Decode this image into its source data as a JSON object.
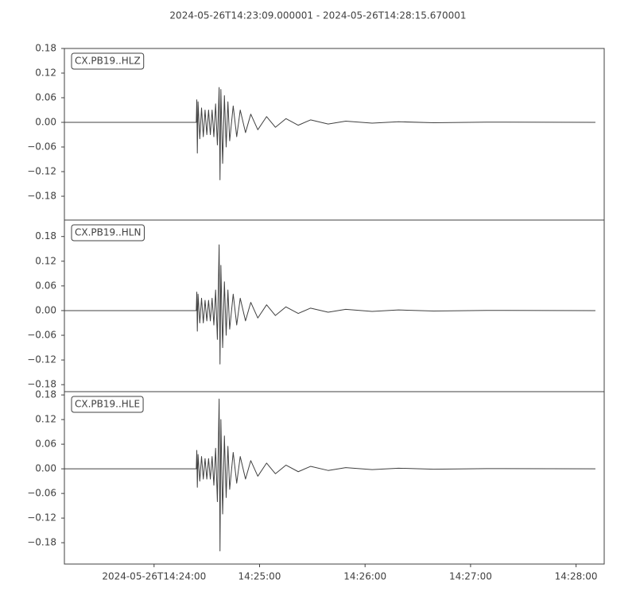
{
  "title": "2024-05-26T14:23:09.000001  -  2024-05-26T14:28:15.670001",
  "chart_data": [
    {
      "type": "line",
      "label": "CX.PB19..HLZ",
      "color": "#404040",
      "xlim": [
        0,
        307
      ],
      "ylim": [
        -0.238,
        0.18
      ],
      "yticks": [
        0.18,
        0.12,
        0.06,
        {
          "value": 0,
          "label": "0.00"
        },
        {
          "value": -0.06,
          "label": "−0.06"
        },
        {
          "value": -0.12,
          "label": "−0.12"
        },
        {
          "value": -0.18,
          "label": "−0.18"
        }
      ],
      "x": [
        0,
        75,
        75.3,
        75.6,
        76,
        77,
        78,
        79,
        80,
        81,
        82,
        83,
        84,
        85,
        86,
        87,
        88,
        88.5,
        89,
        90,
        91,
        92,
        93,
        94,
        96,
        98,
        100,
        103,
        106,
        110,
        115,
        120,
        126,
        133,
        140,
        150,
        160,
        175,
        190,
        210,
        240,
        302
      ],
      "values": [
        0,
        0,
        0.055,
        -0.075,
        0.05,
        -0.04,
        0.035,
        -0.035,
        0.03,
        -0.03,
        0.03,
        -0.03,
        0.03,
        -0.035,
        0.045,
        -0.055,
        0.085,
        -0.14,
        0.08,
        -0.1,
        0.065,
        -0.06,
        0.05,
        -0.045,
        0.04,
        -0.035,
        0.03,
        -0.025,
        0.02,
        -0.018,
        0.014,
        -0.012,
        0.009,
        -0.007,
        0.006,
        -0.004,
        0.003,
        -0.002,
        0.0015,
        -0.001,
        0.0005,
        0
      ]
    },
    {
      "type": "line",
      "label": "CX.PB19..HLN",
      "color": "#404040",
      "xlim": [
        0,
        307
      ],
      "ylim": [
        -0.197,
        0.22
      ],
      "yticks": [
        0.18,
        0.12,
        0.06,
        {
          "value": 0,
          "label": "0.00"
        },
        {
          "value": -0.06,
          "label": "−0.06"
        },
        {
          "value": -0.12,
          "label": "−0.12"
        },
        {
          "value": -0.18,
          "label": "−0.18"
        }
      ],
      "x": [
        0,
        75,
        75.3,
        75.6,
        76,
        77,
        78,
        79,
        80,
        81,
        82,
        83,
        84,
        85,
        86,
        87,
        88,
        88.5,
        89,
        90,
        91,
        92,
        93,
        94,
        96,
        98,
        100,
        103,
        106,
        110,
        115,
        120,
        126,
        133,
        140,
        150,
        160,
        175,
        190,
        210,
        240,
        302
      ],
      "values": [
        0,
        0,
        0.045,
        -0.05,
        0.04,
        -0.03,
        0.03,
        -0.03,
        0.025,
        -0.025,
        0.025,
        -0.025,
        0.03,
        -0.035,
        0.05,
        -0.07,
        0.16,
        -0.13,
        0.11,
        -0.09,
        0.07,
        -0.06,
        0.05,
        -0.045,
        0.04,
        -0.035,
        0.03,
        -0.025,
        0.02,
        -0.018,
        0.014,
        -0.012,
        0.009,
        -0.007,
        0.006,
        -0.004,
        0.003,
        -0.002,
        0.0015,
        -0.001,
        0.0005,
        0
      ]
    },
    {
      "type": "line",
      "label": "CX.PB19..HLE",
      "color": "#404040",
      "xlim": [
        0,
        307
      ],
      "ylim": [
        -0.232,
        0.188
      ],
      "yticks": [
        0.18,
        0.12,
        0.06,
        {
          "value": 0,
          "label": "0.00"
        },
        {
          "value": -0.06,
          "label": "−0.06"
        },
        {
          "value": -0.12,
          "label": "−0.12"
        },
        {
          "value": -0.18,
          "label": "−0.18"
        }
      ],
      "xticks": [
        {
          "value": 51,
          "label": "2024-05-26T14:24:00"
        },
        {
          "value": 111,
          "label": "14:25:00"
        },
        {
          "value": 171,
          "label": "14:26:00"
        },
        {
          "value": 231,
          "label": "14:27:00"
        },
        {
          "value": 291,
          "label": "14:28:00"
        }
      ],
      "x": [
        0,
        75,
        75.3,
        75.6,
        76,
        77,
        78,
        79,
        80,
        81,
        82,
        83,
        84,
        85,
        86,
        87,
        88,
        88.5,
        89,
        90,
        91,
        92,
        93,
        94,
        96,
        98,
        100,
        103,
        106,
        110,
        115,
        120,
        126,
        133,
        140,
        150,
        160,
        175,
        190,
        210,
        240,
        302
      ],
      "values": [
        0,
        0,
        0.045,
        -0.045,
        0.035,
        -0.03,
        0.03,
        -0.025,
        0.025,
        -0.025,
        0.025,
        -0.025,
        0.03,
        -0.04,
        0.05,
        -0.08,
        0.17,
        -0.2,
        0.12,
        -0.11,
        0.08,
        -0.07,
        0.055,
        -0.05,
        0.04,
        -0.035,
        0.03,
        -0.025,
        0.02,
        -0.018,
        0.014,
        -0.012,
        0.009,
        -0.007,
        0.006,
        -0.004,
        0.003,
        -0.002,
        0.0015,
        -0.001,
        0.0005,
        0
      ]
    }
  ]
}
